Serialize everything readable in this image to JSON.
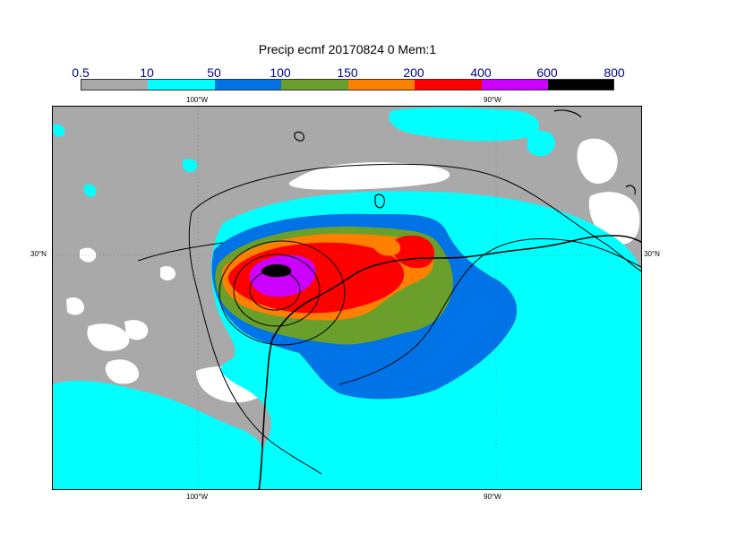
{
  "title": "Precip ecmf 20170824 0 Mem:1",
  "legend": {
    "labels": [
      "0.5",
      "10",
      "50",
      "100",
      "150",
      "200",
      "400",
      "600",
      "800"
    ],
    "colors": [
      "#a9a9a9",
      "#00ffff",
      "#0073e6",
      "#6b9f2b",
      "#ff8000",
      "#ff0000",
      "#cc00ff",
      "#000000"
    ]
  },
  "axes": {
    "top_lon": [
      "100°W",
      "90°W"
    ],
    "bottom_lon": [
      "100°W",
      "90°W"
    ],
    "left_lat": "30°N",
    "right_lat": "30°N"
  }
}
